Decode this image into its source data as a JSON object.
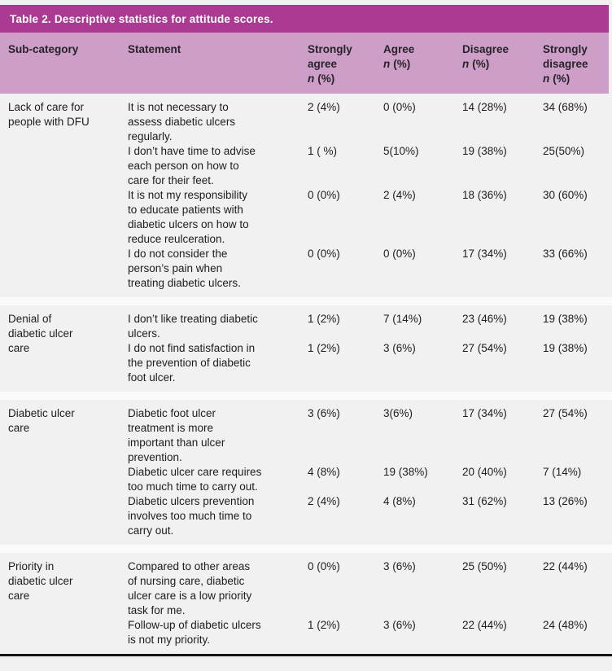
{
  "colors": {
    "caption_bar_bg": "#ab3a92",
    "header_row_bg": "#cd9ec7",
    "body_bg": "#f2f1f1",
    "separator_bg": "#fbfbfb",
    "caption_text": "#ffffff",
    "body_text": "#1e1c1d",
    "bottom_rule": "#141414"
  },
  "caption": "Table 2. Descriptive statistics for attitude scores.",
  "header": {
    "sub_category": "Sub-category",
    "statement": "Statement",
    "cols": [
      {
        "label": "Strongly\nagree"
      },
      {
        "label": "Agree"
      },
      {
        "label": "Disagree"
      },
      {
        "label": "Strongly\ndisagree"
      }
    ],
    "n_italic": "n",
    "n_rest": "(%)"
  },
  "groups": [
    {
      "sub_category": "Lack of care for\npeople with DFU",
      "rows": [
        {
          "statement": "It is not necessary to\nassess diabetic ulcers\nregularly.",
          "values": [
            "2 (4%)",
            "0 (0%)",
            "14 (28%)",
            "34 (68%)"
          ]
        },
        {
          "statement": "I don’t have time to advise\neach person on how to\ncare for their feet.",
          "values": [
            "1 ( %)",
            "5(10%)",
            "19 (38%)",
            "25(50%)"
          ]
        },
        {
          "statement": "It is not my responsibility\nto educate patients with\ndiabetic ulcers on how to\nreduce reulceration.",
          "values": [
            "0 (0%)",
            "2 (4%)",
            "18 (36%)",
            "30 (60%)"
          ]
        },
        {
          "statement": "I do not consider the\nperson’s pain when\ntreating diabetic ulcers.",
          "values": [
            "0 (0%)",
            "0 (0%)",
            "17 (34%)",
            "33 (66%)"
          ]
        }
      ]
    },
    {
      "sub_category": "Denial of\ndiabetic ulcer\ncare",
      "rows": [
        {
          "statement": "I don’t like treating diabetic\nulcers.",
          "values": [
            "1 (2%)",
            "7 (14%)",
            "23 (46%)",
            "19 (38%)"
          ]
        },
        {
          "statement": "I do not find satisfaction in\nthe prevention of diabetic\nfoot ulcer.",
          "values": [
            "1 (2%)",
            "3 (6%)",
            "27 (54%)",
            "19 (38%)"
          ]
        }
      ]
    },
    {
      "sub_category": "Diabetic ulcer\ncare",
      "rows": [
        {
          "statement": "Diabetic foot ulcer\ntreatment is more\nimportant than ulcer\nprevention.",
          "values": [
            "3 (6%)",
            "3(6%)",
            "17 (34%)",
            "27 (54%)"
          ]
        },
        {
          "statement": "Diabetic ulcer care requires\ntoo much time to carry out.",
          "values": [
            "4 (8%)",
            "19 (38%)",
            "20 (40%)",
            "7 (14%)"
          ]
        },
        {
          "statement": "Diabetic ulcers prevention\ninvolves too much time to\ncarry out.",
          "values": [
            "2 (4%)",
            "4 (8%)",
            "31 (62%)",
            "13 (26%)"
          ]
        }
      ]
    },
    {
      "sub_category": "Priority in\ndiabetic ulcer\ncare",
      "rows": [
        {
          "statement": "Compared to other areas\nof nursing care, diabetic\nulcer care is a low priority\ntask for me.",
          "values": [
            "0 (0%)",
            "3 (6%)",
            "25 (50%)",
            "22 (44%)"
          ]
        },
        {
          "statement": "Follow-up of diabetic ulcers\nis not my priority.",
          "values": [
            "1 (2%)",
            "3 (6%)",
            "22 (44%)",
            "24 (48%)"
          ]
        }
      ]
    }
  ]
}
